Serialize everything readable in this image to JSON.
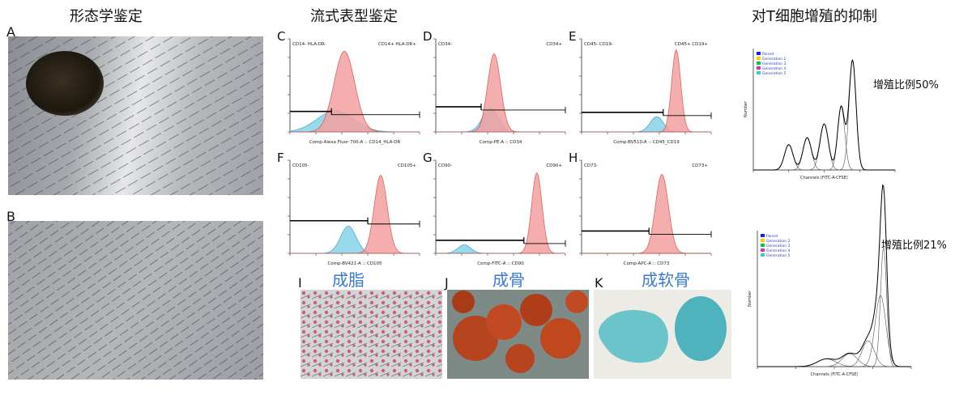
{
  "sections": {
    "morphology": "形态学鉴定",
    "flow": "流式表型鉴定",
    "tcell": "对T细胞增殖的抑制"
  },
  "panel_letters": [
    "A",
    "B",
    "C",
    "D",
    "E",
    "F",
    "G",
    "H",
    "I",
    "J",
    "K"
  ],
  "differentiation": {
    "adipo": "成脂",
    "osteo": "成骨",
    "chondro": "成软骨"
  },
  "proliferation": {
    "top_label": "增殖比例50%",
    "bottom_label": "增殖比例21%",
    "xlabel": "Channels (FITC-A-CFSE)",
    "ylabel": "Number",
    "legend": [
      "Parent",
      "Generation 2",
      "Generation 3",
      "Generation 4",
      "Generation 5"
    ],
    "legend_colors": [
      "#1a1aff",
      "#ffcc00",
      "#00cc33",
      "#cc33cc",
      "#33cccc"
    ]
  },
  "flow_panels": [
    {
      "letter": "C",
      "neg": "CD14- HLA-DR-",
      "pos": "CD14+ HLA-DR+",
      "xlabel": "Comp-Alexa Fluor 700-A :: CD14_HLA-DR"
    },
    {
      "letter": "D",
      "neg": "CD34-",
      "pos": "CD34+",
      "xlabel": "Comp-PE-A :: CD34"
    },
    {
      "letter": "E",
      "neg": "CD45- CD19-",
      "pos": "CD45+ CD19+",
      "xlabel": "Comp-BV510-A :: CD45_CD19"
    },
    {
      "letter": "F",
      "neg": "CD105-",
      "pos": "CD105+",
      "xlabel": "Comp-BV421-A :: CD105"
    },
    {
      "letter": "G",
      "neg": "CD90-",
      "pos": "CD90+",
      "xlabel": "Comp-FITC-A :: CD90"
    },
    {
      "letter": "H",
      "neg": "CD73-",
      "pos": "CD73+",
      "xlabel": "Comp-APC-A :: CD73"
    }
  ],
  "colors": {
    "sample_fill": "#f4a0a0",
    "sample_line": "#d94848",
    "isotype_fill": "#8fd6e8",
    "isotype_line": "#3aa5c9",
    "label_blue": "#3b7ad0"
  }
}
